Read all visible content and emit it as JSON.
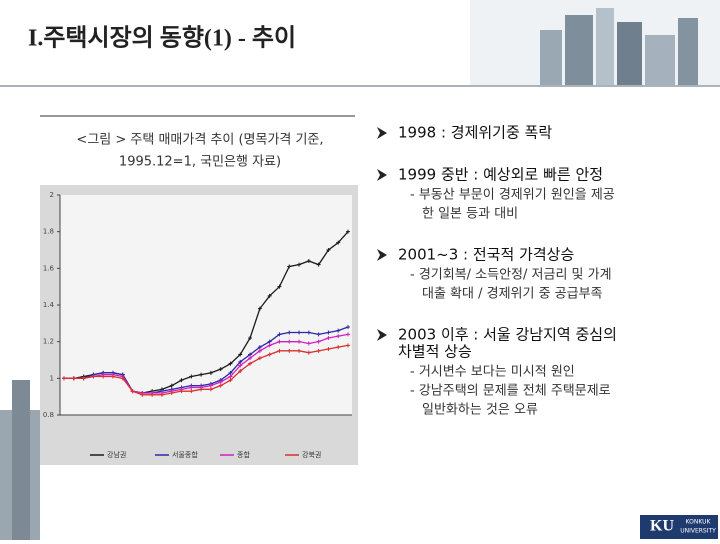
{
  "header": {
    "title": "I.주택시장의 동향(1) - 추이"
  },
  "figure": {
    "caption": [
      "<그림 > 주택 매매가격 추이 (명목가격 기준,",
      "1995.12=1, 국민은행 자료)"
    ]
  },
  "chart_data": {
    "type": "line",
    "ylim": [
      0.8,
      2
    ],
    "yticks": [
      0.8,
      1,
      1.2,
      1.4,
      1.6,
      1.8,
      2
    ],
    "series": [
      {
        "name": "강남권",
        "color": "#1a1a1a",
        "values": [
          1.0,
          1.0,
          1.01,
          1.02,
          1.03,
          1.03,
          1.02,
          0.93,
          0.92,
          0.93,
          0.94,
          0.96,
          0.99,
          1.01,
          1.02,
          1.03,
          1.05,
          1.08,
          1.13,
          1.22,
          1.38,
          1.45,
          1.5,
          1.61,
          1.62,
          1.64,
          1.62,
          1.7,
          1.74,
          1.8
        ]
      },
      {
        "name": "서울종합",
        "color": "#2a2aa8",
        "values": [
          1.0,
          1.0,
          1.0,
          1.02,
          1.03,
          1.03,
          1.02,
          0.93,
          0.92,
          0.92,
          0.93,
          0.94,
          0.95,
          0.96,
          0.96,
          0.97,
          0.99,
          1.03,
          1.09,
          1.13,
          1.17,
          1.2,
          1.24,
          1.25,
          1.25,
          1.25,
          1.24,
          1.25,
          1.26,
          1.28
        ]
      },
      {
        "name": "종합",
        "color": "#d020c0",
        "values": [
          1.0,
          1.0,
          1.0,
          1.01,
          1.02,
          1.02,
          1.01,
          0.93,
          0.92,
          0.92,
          0.92,
          0.93,
          0.94,
          0.95,
          0.95,
          0.96,
          0.98,
          1.01,
          1.07,
          1.11,
          1.15,
          1.18,
          1.2,
          1.2,
          1.2,
          1.19,
          1.2,
          1.22,
          1.23,
          1.24
        ]
      },
      {
        "name": "강북권",
        "color": "#d83030",
        "values": [
          1.0,
          1.0,
          1.0,
          1.01,
          1.01,
          1.01,
          1.0,
          0.93,
          0.91,
          0.91,
          0.91,
          0.92,
          0.93,
          0.93,
          0.94,
          0.94,
          0.96,
          0.99,
          1.04,
          1.08,
          1.11,
          1.13,
          1.15,
          1.15,
          1.15,
          1.14,
          1.15,
          1.16,
          1.17,
          1.18
        ]
      }
    ]
  },
  "bullets": [
    {
      "heading": [
        "1998 : 경제위기중 폭락"
      ],
      "subs": []
    },
    {
      "heading": [
        "1999 중반 : 예상외로  빠른 안정"
      ],
      "subs": [
        "- 부동산 부문이 경제위기 원인을 제공",
        "한 일본 등과 대비"
      ]
    },
    {
      "heading": [
        "2001~3 : 전국적 가격상승"
      ],
      "subs": [
        "- 경기회복/ 소득안정/ 저금리 및 가계",
        "대출 확대 / 경제위기 중 공급부족"
      ]
    },
    {
      "heading": [
        "2003 이후 : 서울 강남지역 중심의",
        "차별적 상승"
      ],
      "subs": [
        "- 거시변수 보다는 미시적 원인",
        "- 강남주택의 문제를 전체 주택문제로",
        "일반화하는 것은 오류"
      ]
    }
  ],
  "logo": {
    "mark": "KU",
    "name": [
      "KONKUK",
      "UNIVERSITY"
    ]
  }
}
